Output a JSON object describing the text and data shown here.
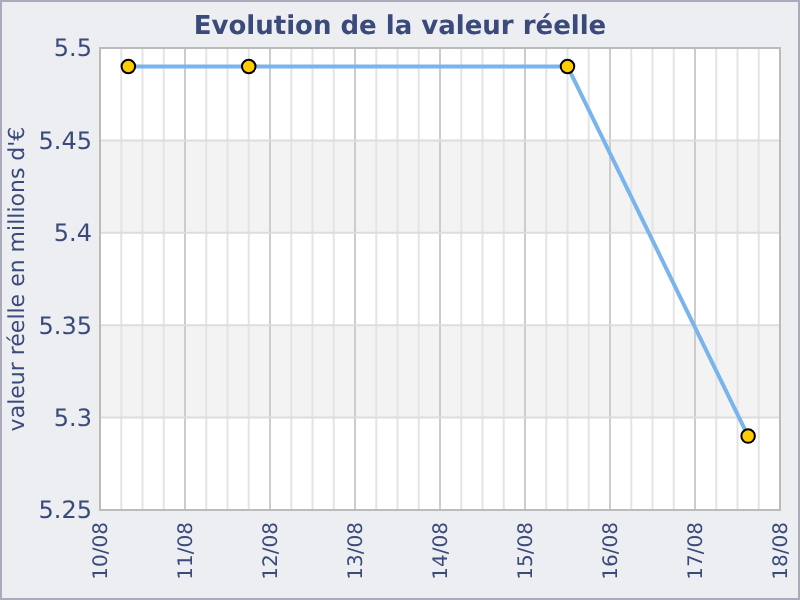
{
  "chart_data": {
    "type": "line",
    "title": "Evolution de la valeur réelle",
    "ylabel": "valeur réelle en millions d'€",
    "x": [
      "--08-10T08:00",
      "--08-11T18:00",
      "--08-15T12:00",
      "--08-17T15:00"
    ],
    "series": [
      {
        "color": "#7ab4ec",
        "values": [
          5.49,
          5.49,
          5.49,
          5.29
        ]
      }
    ],
    "xlim": [
      "--08-10",
      "--08-18"
    ],
    "xticks": [
      {
        "value": "--08-10",
        "label": "10/08"
      },
      {
        "value": "--08-10T06:00",
        "label": null
      },
      {
        "value": "--08-10T12:00",
        "label": null
      },
      {
        "value": "--08-10T18:00",
        "label": null
      },
      {
        "value": "--08-11",
        "label": "11/08"
      },
      {
        "value": "--08-11T06:00",
        "label": null
      },
      {
        "value": "--08-11T12:00",
        "label": null
      },
      {
        "value": "--08-11T18:00",
        "label": null
      },
      {
        "value": "--08-12",
        "label": "12/08"
      },
      {
        "value": "--08-12T06:00",
        "label": null
      },
      {
        "value": "--08-12T12:00",
        "label": null
      },
      {
        "value": "--08-12T18:00",
        "label": null
      },
      {
        "value": "--08-13",
        "label": "13/08"
      },
      {
        "value": "--08-13T06:00",
        "label": null
      },
      {
        "value": "--08-13T12:00",
        "label": null
      },
      {
        "value": "--08-13T18:00",
        "label": null
      },
      {
        "value": "--08-14",
        "label": "14/08"
      },
      {
        "value": "--08-14T06:00",
        "label": null
      },
      {
        "value": "--08-14T12:00",
        "label": null
      },
      {
        "value": "--08-14T18:00",
        "label": null
      },
      {
        "value": "--08-15",
        "label": "15/08"
      },
      {
        "value": "--08-15T06:00",
        "label": null
      },
      {
        "value": "--08-15T12:00",
        "label": null
      },
      {
        "value": "--08-15T18:00",
        "label": null
      },
      {
        "value": "--08-16",
        "label": "16/08"
      },
      {
        "value": "--08-16T06:00",
        "label": null
      },
      {
        "value": "--08-16T12:00",
        "label": null
      },
      {
        "value": "--08-16T18:00",
        "label": null
      },
      {
        "value": "--08-17",
        "label": "17/08"
      },
      {
        "value": "--08-17T06:00",
        "label": null
      },
      {
        "value": "--08-17T12:00",
        "label": null
      },
      {
        "value": "--08-17T18:00",
        "label": null
      },
      {
        "value": "--08-18",
        "label": "18/08"
      }
    ],
    "ylim": [
      5.25,
      5.5
    ],
    "yticks": [
      5.25,
      5.3,
      5.35,
      5.4,
      5.45,
      5.5
    ],
    "grid": true,
    "marker": "circle"
  }
}
